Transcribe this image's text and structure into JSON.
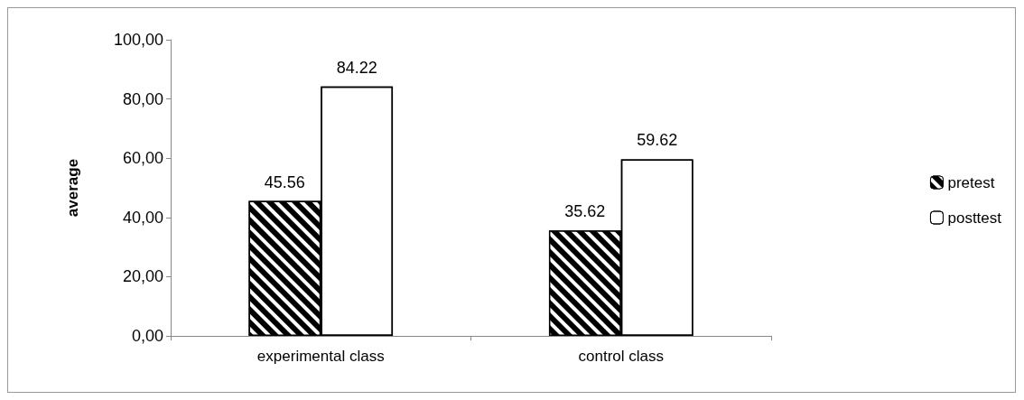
{
  "chart_data": {
    "type": "bar",
    "ylabel": "average",
    "categories": [
      "experimental class",
      "control class"
    ],
    "series": [
      {
        "name": "pretest",
        "color": "#000000",
        "values": [
          45.56,
          35.62
        ]
      },
      {
        "name": "posttest",
        "color": "#ffffff",
        "values": [
          84.22,
          59.62
        ]
      }
    ],
    "ylim": [
      0,
      100
    ],
    "yticks": [
      {
        "value": 0,
        "label": "0,00"
      },
      {
        "value": 20,
        "label": "20,00"
      },
      {
        "value": 40,
        "label": "40,00"
      },
      {
        "value": 60,
        "label": "60,00"
      },
      {
        "value": 80,
        "label": "80,00"
      },
      {
        "value": 100,
        "label": "100,00"
      }
    ],
    "data_labels": true,
    "grid": false,
    "legend": "right"
  }
}
